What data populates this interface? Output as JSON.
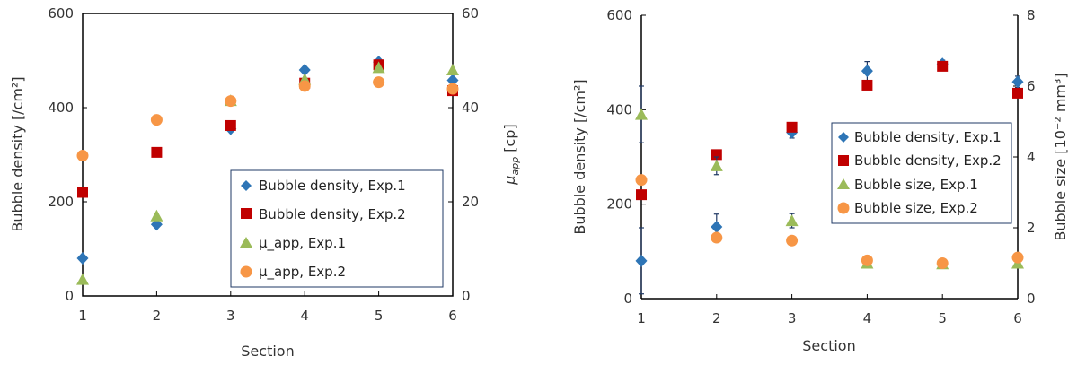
{
  "chart_data": [
    {
      "type": "scatter",
      "xlabel": "Section",
      "ylabel": "Bubble density [/cm²]",
      "y2label_main": "μ",
      "y2label_sub": "app",
      "y2label_unit": " [cp]",
      "x": [
        1,
        2,
        3,
        4,
        5,
        6
      ],
      "xlim": [
        1,
        6
      ],
      "ylim": [
        0,
        600
      ],
      "y2lim": [
        0,
        60
      ],
      "x_ticks": [
        "1",
        "2",
        "3",
        "4",
        "5",
        "6"
      ],
      "y_ticks": [
        "0",
        "200",
        "400",
        "600"
      ],
      "y2_ticks": [
        "0",
        "20",
        "40",
        "60"
      ],
      "grid": false,
      "legend_position": "bottom-right",
      "series": [
        {
          "name": "Bubble density, Exp.1",
          "axis": "left",
          "marker": "diamond",
          "color": "#2E75B6",
          "values": [
            80,
            152,
            355,
            480,
            497,
            458
          ]
        },
        {
          "name": "Bubble density, Exp.2",
          "axis": "left",
          "marker": "square",
          "color": "#C00000",
          "values": [
            220,
            305,
            362,
            452,
            491,
            436
          ]
        },
        {
          "name": "μ_app, Exp.1",
          "axis": "right",
          "marker": "triangle",
          "color": "#9BBB59",
          "values": [
            3.5,
            17,
            41.5,
            46,
            48.5,
            48
          ]
        },
        {
          "name": "μ_app, Exp.2",
          "axis": "right",
          "marker": "circle",
          "color": "#F79646",
          "values": [
            29.8,
            37.4,
            41.4,
            44.6,
            45.4,
            44
          ]
        }
      ]
    },
    {
      "type": "scatter",
      "xlabel": "Section",
      "ylabel": "Bubble density [/cm²]",
      "y2label": "Bubble size [10⁻² mm³]",
      "x": [
        1,
        2,
        3,
        4,
        5,
        6
      ],
      "xlim": [
        1,
        6
      ],
      "ylim": [
        0,
        600
      ],
      "y2lim": [
        0,
        8
      ],
      "x_ticks": [
        "1",
        "2",
        "3",
        "4",
        "5",
        "6"
      ],
      "y_ticks": [
        "0",
        "200",
        "400",
        "600"
      ],
      "y2_ticks": [
        "0",
        "2",
        "4",
        "6",
        "8"
      ],
      "grid": false,
      "legend_position": "center-right",
      "series": [
        {
          "name": "Bubble density, Exp.1",
          "axis": "left",
          "marker": "diamond",
          "color": "#2E75B6",
          "values": [
            80,
            152,
            352,
            482,
            497,
            459
          ],
          "error": [
            70,
            27,
            12,
            20,
            8,
            12
          ]
        },
        {
          "name": "Bubble density, Exp.2",
          "axis": "left",
          "marker": "square",
          "color": "#C00000",
          "values": [
            220,
            305,
            363,
            452,
            492,
            435
          ]
        },
        {
          "name": "Bubble size, Exp.1",
          "axis": "right",
          "marker": "triangle",
          "color": "#9BBB59",
          "values": [
            5.2,
            3.75,
            2.2,
            1.0,
            0.98,
            1.0
          ],
          "error": [
            0.8,
            0.25,
            0.2,
            0.08,
            0.08,
            0.08
          ]
        },
        {
          "name": "Bubble size, Exp.2",
          "axis": "right",
          "marker": "circle",
          "color": "#F79646",
          "values": [
            3.35,
            1.72,
            1.64,
            1.08,
            1.0,
            1.16
          ]
        }
      ]
    }
  ]
}
